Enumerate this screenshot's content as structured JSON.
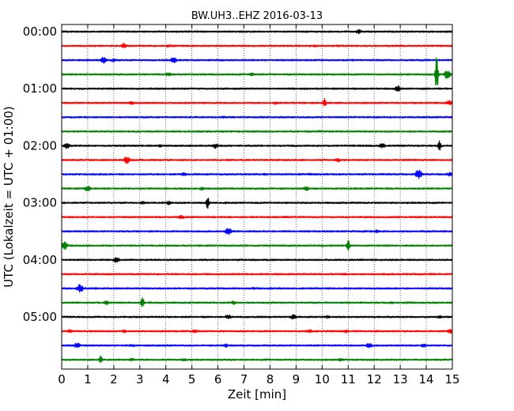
{
  "chart_data": {
    "type": "line",
    "title": "BW.UH3..EHZ 2016-03-13",
    "xlabel": "Zeit  [min]",
    "ylabel": "UTC (Lokalzeit = UTC + 01:00)",
    "xlim": [
      0,
      15
    ],
    "x_ticks": [
      "0",
      "1",
      "2",
      "3",
      "4",
      "5",
      "6",
      "7",
      "8",
      "9",
      "10",
      "11",
      "12",
      "13",
      "14",
      "15"
    ],
    "y_tick_labels": [
      "00:00",
      "01:00",
      "02:00",
      "03:00",
      "04:00",
      "05:00"
    ],
    "grid": "vertical dotted lines at each minute",
    "trace_colors": [
      "#000000",
      "#ff0000",
      "#0000ff",
      "#008000"
    ],
    "traces": [
      {
        "start": "00:00",
        "color": "#000000",
        "events": [
          [
            11.4,
            3.0
          ],
          [
            12.0,
            1.5
          ]
        ]
      },
      {
        "start": "00:15",
        "color": "#ff0000",
        "events": [
          [
            2.4,
            3.5
          ],
          [
            4.1,
            2.0
          ],
          [
            9.7,
            2.0
          ],
          [
            10.6,
            1.6
          ]
        ]
      },
      {
        "start": "00:30",
        "color": "#0000ff",
        "events": [
          [
            1.6,
            5.0
          ],
          [
            2.0,
            2.5
          ],
          [
            4.3,
            4.0
          ],
          [
            5.7,
            1.5
          ],
          [
            11.2,
            1.5
          ]
        ]
      },
      {
        "start": "00:45",
        "color": "#008000",
        "events": [
          [
            4.1,
            2.5
          ],
          [
            7.3,
            2.0
          ],
          [
            14.4,
            24.0
          ],
          [
            14.8,
            6.0
          ]
        ]
      },
      {
        "start": "01:00",
        "color": "#000000",
        "events": [
          [
            9.3,
            1.5
          ],
          [
            12.9,
            4.0
          ]
        ]
      },
      {
        "start": "01:15",
        "color": "#ff0000",
        "events": [
          [
            2.7,
            2.5
          ],
          [
            8.2,
            2.0
          ],
          [
            10.1,
            7.0
          ],
          [
            14.9,
            3.5
          ]
        ]
      },
      {
        "start": "01:30",
        "color": "#0000ff",
        "events": [
          [
            6.2,
            1.5
          ]
        ]
      },
      {
        "start": "01:45",
        "color": "#008000",
        "events": [
          [
            5.6,
            1.5
          ],
          [
            9.9,
            1.5
          ]
        ]
      },
      {
        "start": "02:00",
        "color": "#000000",
        "events": [
          [
            0.2,
            4.0
          ],
          [
            3.8,
            2.0
          ],
          [
            5.9,
            3.5
          ],
          [
            12.3,
            3.5
          ],
          [
            13.1,
            1.5
          ],
          [
            14.5,
            10.0
          ]
        ]
      },
      {
        "start": "02:15",
        "color": "#ff0000",
        "events": [
          [
            2.5,
            5.0
          ],
          [
            6.5,
            1.5
          ],
          [
            10.6,
            3.0
          ]
        ]
      },
      {
        "start": "02:30",
        "color": "#0000ff",
        "events": [
          [
            4.7,
            2.5
          ],
          [
            7.8,
            1.5
          ],
          [
            9.5,
            1.5
          ],
          [
            13.7,
            6.0
          ],
          [
            14.9,
            2.5
          ]
        ]
      },
      {
        "start": "02:45",
        "color": "#008000",
        "events": [
          [
            1.0,
            4.0
          ],
          [
            5.4,
            2.5
          ],
          [
            9.4,
            3.0
          ],
          [
            12.5,
            1.5
          ]
        ]
      },
      {
        "start": "03:00",
        "color": "#000000",
        "events": [
          [
            3.1,
            2.0
          ],
          [
            4.1,
            2.5
          ],
          [
            5.6,
            9.0
          ],
          [
            6.3,
            1.5
          ]
        ]
      },
      {
        "start": "03:15",
        "color": "#ff0000",
        "events": [
          [
            4.6,
            3.0
          ],
          [
            8.7,
            1.5
          ]
        ]
      },
      {
        "start": "03:30",
        "color": "#0000ff",
        "events": [
          [
            6.4,
            5.0
          ],
          [
            11.6,
            1.5
          ],
          [
            12.1,
            2.0
          ]
        ]
      },
      {
        "start": "03:45",
        "color": "#008000",
        "events": [
          [
            0.1,
            6.0
          ],
          [
            5.7,
            1.5
          ],
          [
            10.0,
            1.5
          ],
          [
            11.0,
            9.0
          ]
        ]
      },
      {
        "start": "04:00",
        "color": "#000000",
        "events": [
          [
            2.1,
            4.0
          ],
          [
            6.8,
            1.5
          ]
        ]
      },
      {
        "start": "04:15",
        "color": "#ff0000",
        "events": [
          [
            8.5,
            1.5
          ],
          [
            10.9,
            1.5
          ]
        ]
      },
      {
        "start": "04:30",
        "color": "#0000ff",
        "events": [
          [
            0.7,
            6.0
          ],
          [
            1.3,
            1.5
          ],
          [
            7.4,
            2.0
          ]
        ]
      },
      {
        "start": "04:45",
        "color": "#008000",
        "events": [
          [
            1.7,
            3.0
          ],
          [
            3.1,
            10.0
          ],
          [
            6.6,
            2.5
          ],
          [
            12.7,
            1.5
          ]
        ]
      },
      {
        "start": "05:00",
        "color": "#000000",
        "events": [
          [
            6.4,
            3.5
          ],
          [
            8.9,
            3.5
          ],
          [
            10.2,
            2.0
          ],
          [
            14.5,
            2.5
          ]
        ]
      },
      {
        "start": "05:15",
        "color": "#ff0000",
        "events": [
          [
            0.3,
            2.5
          ],
          [
            2.4,
            2.0
          ],
          [
            5.1,
            2.5
          ],
          [
            9.5,
            2.5
          ],
          [
            10.9,
            2.5
          ],
          [
            14.9,
            3.0
          ]
        ]
      },
      {
        "start": "05:30",
        "color": "#0000ff",
        "events": [
          [
            0.6,
            4.0
          ],
          [
            2.7,
            2.0
          ],
          [
            6.3,
            2.5
          ],
          [
            11.8,
            3.5
          ],
          [
            13.9,
            3.0
          ]
        ]
      },
      {
        "start": "05:45",
        "color": "#008000",
        "events": [
          [
            1.5,
            7.0
          ],
          [
            2.7,
            2.0
          ],
          [
            4.7,
            2.0
          ],
          [
            10.7,
            2.0
          ]
        ]
      }
    ]
  }
}
